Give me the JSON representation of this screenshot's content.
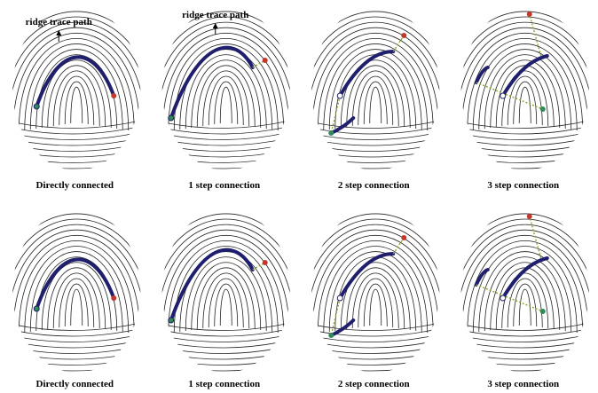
{
  "rows": [
    [
      {
        "caption": "Directly connected",
        "annotation": "ridge trace path"
      },
      {
        "caption": "1 step connection",
        "annotation": "ridge trace path"
      },
      {
        "caption": "2 step connection"
      },
      {
        "caption": "3 step connection"
      }
    ],
    [
      {
        "caption": "Directly connected"
      },
      {
        "caption": "1 step connection"
      },
      {
        "caption": "2 step connection"
      },
      {
        "caption": "3 step connection"
      }
    ]
  ]
}
